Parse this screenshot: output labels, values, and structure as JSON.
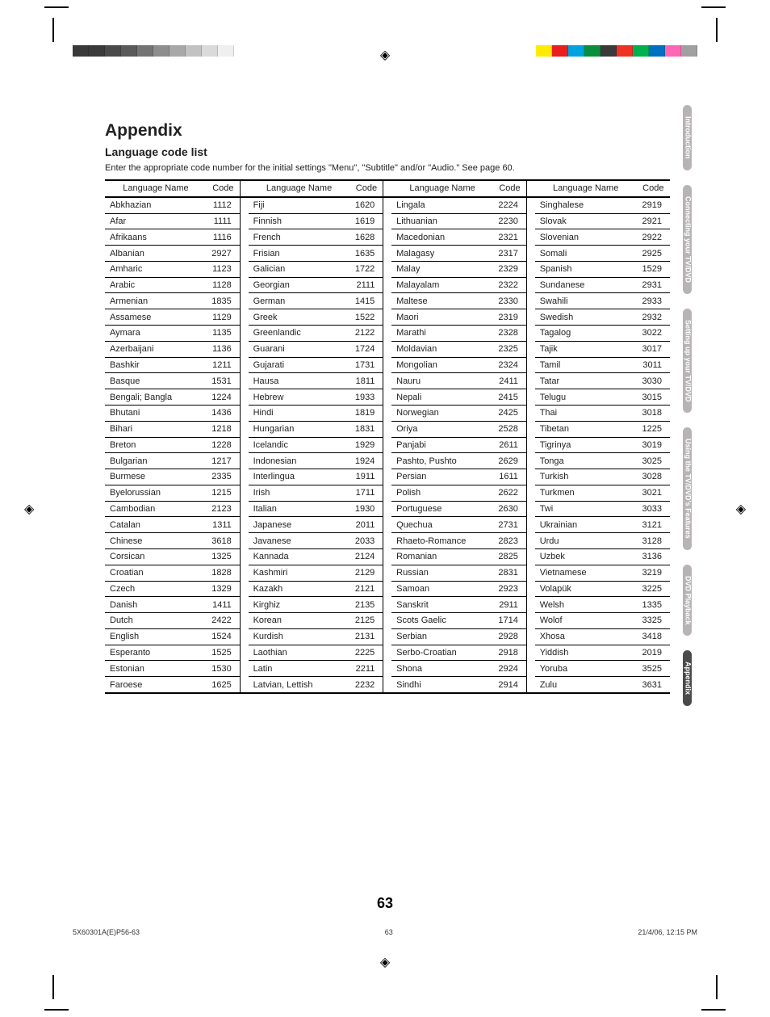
{
  "heading": "Appendix",
  "subheading": "Language code list",
  "intro": "Enter the appropriate code number for the initial settings \"Menu\", \"Subtitle\" and/or \"Audio.\"  See page 60.",
  "col_header_name": "Language Name",
  "col_header_code": "Code",
  "columns": [
    [
      [
        "Abkhazian",
        "1112"
      ],
      [
        "Afar",
        "1111"
      ],
      [
        "Afrikaans",
        "1116"
      ],
      [
        "Albanian",
        "2927"
      ],
      [
        "Amharic",
        "1123"
      ],
      [
        "Arabic",
        "1128"
      ],
      [
        "Armenian",
        "1835"
      ],
      [
        "Assamese",
        "1129"
      ],
      [
        "Aymara",
        "1135"
      ],
      [
        "Azerbaijani",
        "1136"
      ],
      [
        "Bashkir",
        "1211"
      ],
      [
        "Basque",
        "1531"
      ],
      [
        "Bengali; Bangla",
        "1224"
      ],
      [
        "Bhutani",
        "1436"
      ],
      [
        "Bihari",
        "1218"
      ],
      [
        "Breton",
        "1228"
      ],
      [
        "Bulgarian",
        "1217"
      ],
      [
        "Burmese",
        "2335"
      ],
      [
        "Byelorussian",
        "1215"
      ],
      [
        "Cambodian",
        "2123"
      ],
      [
        "Catalan",
        "1311"
      ],
      [
        "Chinese",
        "3618"
      ],
      [
        "Corsican",
        "1325"
      ],
      [
        "Croatian",
        "1828"
      ],
      [
        "Czech",
        "1329"
      ],
      [
        "Danish",
        "1411"
      ],
      [
        "Dutch",
        "2422"
      ],
      [
        "English",
        "1524"
      ],
      [
        "Esperanto",
        "1525"
      ],
      [
        "Estonian",
        "1530"
      ],
      [
        "Faroese",
        "1625"
      ]
    ],
    [
      [
        "Fiji",
        "1620"
      ],
      [
        "Finnish",
        "1619"
      ],
      [
        "French",
        "1628"
      ],
      [
        "Frisian",
        "1635"
      ],
      [
        "Galician",
        "1722"
      ],
      [
        "Georgian",
        "2111"
      ],
      [
        "German",
        "1415"
      ],
      [
        "Greek",
        "1522"
      ],
      [
        "Greenlandic",
        "2122"
      ],
      [
        "Guarani",
        "1724"
      ],
      [
        "Gujarati",
        "1731"
      ],
      [
        "Hausa",
        "1811"
      ],
      [
        "Hebrew",
        "1933"
      ],
      [
        "Hindi",
        "1819"
      ],
      [
        "Hungarian",
        "1831"
      ],
      [
        "Icelandic",
        "1929"
      ],
      [
        "Indonesian",
        "1924"
      ],
      [
        "Interlingua",
        "1911"
      ],
      [
        "Irish",
        "1711"
      ],
      [
        "Italian",
        "1930"
      ],
      [
        "Japanese",
        "2011"
      ],
      [
        "Javanese",
        "2033"
      ],
      [
        "Kannada",
        "2124"
      ],
      [
        "Kashmiri",
        "2129"
      ],
      [
        "Kazakh",
        "2121"
      ],
      [
        "Kirghiz",
        "2135"
      ],
      [
        "Korean",
        "2125"
      ],
      [
        "Kurdish",
        "2131"
      ],
      [
        "Laothian",
        "2225"
      ],
      [
        "Latin",
        "2211"
      ],
      [
        "Latvian, Lettish",
        "2232"
      ]
    ],
    [
      [
        "Lingala",
        "2224"
      ],
      [
        "Lithuanian",
        "2230"
      ],
      [
        "Macedonian",
        "2321"
      ],
      [
        "Malagasy",
        "2317"
      ],
      [
        "Malay",
        "2329"
      ],
      [
        "Malayalam",
        "2322"
      ],
      [
        "Maltese",
        "2330"
      ],
      [
        "Maori",
        "2319"
      ],
      [
        "Marathi",
        "2328"
      ],
      [
        "Moldavian",
        "2325"
      ],
      [
        "Mongolian",
        "2324"
      ],
      [
        "Nauru",
        "2411"
      ],
      [
        "Nepali",
        "2415"
      ],
      [
        "Norwegian",
        "2425"
      ],
      [
        "Oriya",
        "2528"
      ],
      [
        "Panjabi",
        "2611"
      ],
      [
        "Pashto, Pushto",
        "2629"
      ],
      [
        "Persian",
        "1611"
      ],
      [
        "Polish",
        "2622"
      ],
      [
        "Portuguese",
        "2630"
      ],
      [
        "Quechua",
        "2731"
      ],
      [
        "Rhaeto-Romance",
        "2823"
      ],
      [
        "Romanian",
        "2825"
      ],
      [
        "Russian",
        "2831"
      ],
      [
        "Samoan",
        "2923"
      ],
      [
        "Sanskrit",
        "2911"
      ],
      [
        "Scots Gaelic",
        "1714"
      ],
      [
        "Serbian",
        "2928"
      ],
      [
        "Serbo-Croatian",
        "2918"
      ],
      [
        "Shona",
        "2924"
      ],
      [
        "Sindhi",
        "2914"
      ]
    ],
    [
      [
        "Singhalese",
        "2919"
      ],
      [
        "Slovak",
        "2921"
      ],
      [
        "Slovenian",
        "2922"
      ],
      [
        "Somali",
        "2925"
      ],
      [
        "Spanish",
        "1529"
      ],
      [
        "Sundanese",
        "2931"
      ],
      [
        "Swahili",
        "2933"
      ],
      [
        "Swedish",
        "2932"
      ],
      [
        "Tagalog",
        "3022"
      ],
      [
        "Tajik",
        "3017"
      ],
      [
        "Tamil",
        "3011"
      ],
      [
        "Tatar",
        "3030"
      ],
      [
        "Telugu",
        "3015"
      ],
      [
        "Thai",
        "3018"
      ],
      [
        "Tibetan",
        "1225"
      ],
      [
        "Tigrinya",
        "3019"
      ],
      [
        "Tonga",
        "3025"
      ],
      [
        "Turkish",
        "3028"
      ],
      [
        "Turkmen",
        "3021"
      ],
      [
        "Twi",
        "3033"
      ],
      [
        "Ukrainian",
        "3121"
      ],
      [
        "Urdu",
        "3128"
      ],
      [
        "Uzbek",
        "3136"
      ],
      [
        "Vietnamese",
        "3219"
      ],
      [
        "Volapük",
        "3225"
      ],
      [
        "Welsh",
        "1335"
      ],
      [
        "Wolof",
        "3325"
      ],
      [
        "Xhosa",
        "3418"
      ],
      [
        "Yiddish",
        "2019"
      ],
      [
        "Yoruba",
        "3525"
      ],
      [
        "Zulu",
        "3631"
      ]
    ]
  ],
  "side_tabs": [
    {
      "label": "Introduction",
      "bg": "#b8b4b4"
    },
    {
      "label": "Connecting\nyour TV/DVD",
      "bg": "#b8b4b4"
    },
    {
      "label": "Setting up\nyour TV/DVD",
      "bg": "#b8b4b4"
    },
    {
      "label": "Using the\nTV/DVD's Features",
      "bg": "#b8b4b4"
    },
    {
      "label": "DVD Playback",
      "bg": "#b8b4b4"
    },
    {
      "label": "Appendix",
      "bg": "#4a4a4a"
    }
  ],
  "page_number": "63",
  "footer_left": "5X60301A(E)P56-63",
  "footer_mid": "63",
  "footer_right": "21/4/06, 12:15 PM",
  "colorbar_left": [
    "#3a3a3a",
    "#3a3a3a",
    "#4a4a4a",
    "#5a5a5a",
    "#747474",
    "#8e8e8e",
    "#a8a8a8",
    "#c2c2c2",
    "#dadada",
    "#efefef"
  ],
  "colorbar_right": [
    "#ffea00",
    "#e91e1e",
    "#00a3e0",
    "#0b8f3b",
    "#3a3a3a",
    "#ee3124",
    "#00b050",
    "#0070c0",
    "#ff66b3",
    "#a0a0a0"
  ]
}
